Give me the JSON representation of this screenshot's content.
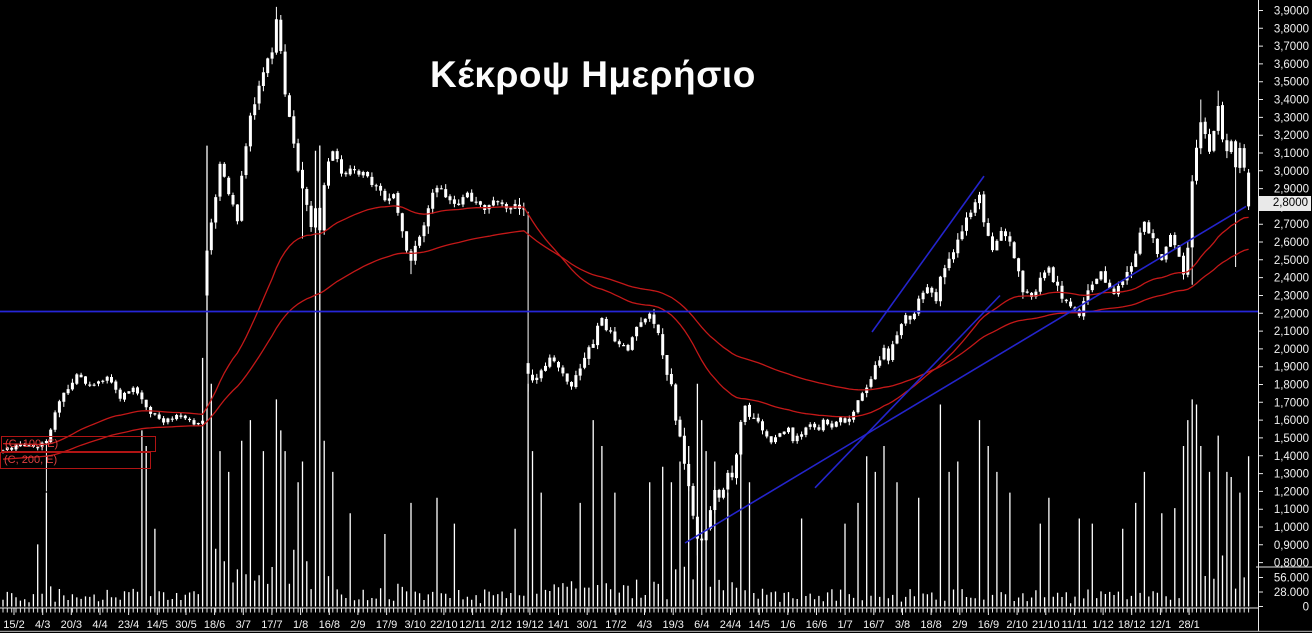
{
  "colors": {
    "background": "#000000",
    "candle": "#ffffff",
    "volume": "#ffffff",
    "ema": "#c41818",
    "trend": "#2424cc",
    "hline": "#2626d8",
    "axis_line": "#e8e8e8",
    "axis_text": "#f2f2f2",
    "bottom_border": "#9a9a9a",
    "last_price_bg": "#e9e9e9",
    "last_price_text": "#000000"
  },
  "indicators": {
    "ema_labels": [
      "(C, 100, E)",
      "(C, 200, E)"
    ],
    "ema_periods": [
      100,
      200
    ],
    "ema_seeds": [
      1.47,
      1.38
    ],
    "ema_alphas": [
      0.042,
      0.024
    ]
  },
  "chart_data": {
    "type": "candlestick",
    "title": "Κέκροψ Ημερήσιο",
    "ylabel": "",
    "xlabel": "",
    "ylim": [
      0.8,
      3.9
    ],
    "y_tick_step": 0.1,
    "grid": false,
    "last_price": 2.8,
    "last_price_label": "2,8000",
    "hline_price": 2.21,
    "y_axis_ticks": [
      "3,9000",
      "3,8000",
      "3,7000",
      "3,6000",
      "3,5000",
      "3,4000",
      "3,3000",
      "3,2000",
      "3,1000",
      "3,0000",
      "2,9000",
      "2,8000",
      "2,7000",
      "2,6000",
      "2,5000",
      "2,4000",
      "2,3000",
      "2,2000",
      "2,1000",
      "2,0000",
      "1,9000",
      "1,8000",
      "1,7000",
      "1,6000",
      "1,5000",
      "1,4000",
      "1,3000",
      "1,2000",
      "1,1000",
      "1,0000",
      "0,9000",
      "0,8000"
    ],
    "volume_ticks": [
      {
        "label": "56.000",
        "value": 56000
      },
      {
        "label": "28.000",
        "value": 28000
      },
      {
        "label": "0",
        "value": 0
      }
    ],
    "x_labels": [
      "15/2",
      "4/3",
      "20/3",
      "4/4",
      "23/4",
      "14/5",
      "30/5",
      "18/6",
      "3/7",
      "17/7",
      "1/8",
      "16/8",
      "2/9",
      "17/9",
      "3/10",
      "22/10",
      "12/11",
      "2/12",
      "19/12",
      "14/1",
      "30/1",
      "17/2",
      "4/3",
      "19/3",
      "6/4",
      "24/4",
      "14/5",
      "1/6",
      "16/6",
      "1/7",
      "16/7",
      "3/8",
      "18/8",
      "2/9",
      "16/9",
      "2/10",
      "21/10",
      "11/11",
      "1/12",
      "18/12",
      "12/1",
      "28/1"
    ],
    "n_candles": 288,
    "close_anchors": [
      [
        0,
        1.43
      ],
      [
        4,
        1.46
      ],
      [
        8,
        1.45
      ],
      [
        10,
        1.5
      ],
      [
        13,
        1.7
      ],
      [
        17,
        1.86
      ],
      [
        20,
        1.79
      ],
      [
        24,
        1.84
      ],
      [
        27,
        1.73
      ],
      [
        30,
        1.77
      ],
      [
        34,
        1.64
      ],
      [
        37,
        1.59
      ],
      [
        41,
        1.63
      ],
      [
        44,
        1.57
      ],
      [
        46,
        1.62
      ],
      [
        47,
        2.58
      ],
      [
        48,
        2.72
      ],
      [
        50,
        3.02
      ],
      [
        52,
        2.88
      ],
      [
        54,
        2.72
      ],
      [
        55,
        2.95
      ],
      [
        57,
        3.28
      ],
      [
        59,
        3.45
      ],
      [
        60,
        3.55
      ],
      [
        62,
        3.66
      ],
      [
        63,
        3.85
      ],
      [
        64,
        3.7
      ],
      [
        65,
        3.45
      ],
      [
        66,
        3.32
      ],
      [
        67,
        3.18
      ],
      [
        68,
        2.98
      ],
      [
        69,
        2.88
      ],
      [
        71,
        2.7
      ],
      [
        72,
        2.78
      ],
      [
        73,
        2.68
      ],
      [
        74,
        2.9
      ],
      [
        75,
        3.05
      ],
      [
        76,
        3.12
      ],
      [
        78,
        2.98
      ],
      [
        80,
        3.0
      ],
      [
        82,
        2.99
      ],
      [
        84,
        2.98
      ],
      [
        86,
        2.9
      ],
      [
        88,
        2.85
      ],
      [
        90,
        2.85
      ],
      [
        92,
        2.68
      ],
      [
        93,
        2.56
      ],
      [
        94,
        2.5
      ],
      [
        95,
        2.58
      ],
      [
        97,
        2.72
      ],
      [
        99,
        2.86
      ],
      [
        100,
        2.92
      ],
      [
        102,
        2.86
      ],
      [
        104,
        2.8
      ],
      [
        107,
        2.87
      ],
      [
        109,
        2.81
      ],
      [
        111,
        2.78
      ],
      [
        114,
        2.84
      ],
      [
        116,
        2.79
      ],
      [
        118,
        2.81
      ],
      [
        120,
        2.76
      ],
      [
        121,
        1.85
      ],
      [
        122,
        1.8
      ],
      [
        124,
        1.88
      ],
      [
        126,
        1.95
      ],
      [
        129,
        1.85
      ],
      [
        131,
        1.78
      ],
      [
        133,
        1.9
      ],
      [
        136,
        2.05
      ],
      [
        138,
        2.18
      ],
      [
        139,
        2.12
      ],
      [
        141,
        2.05
      ],
      [
        144,
        2.0
      ],
      [
        145,
        2.08
      ],
      [
        147,
        2.15
      ],
      [
        149,
        2.2
      ],
      [
        151,
        2.08
      ],
      [
        152,
        1.95
      ],
      [
        154,
        1.8
      ],
      [
        155,
        1.62
      ],
      [
        156,
        1.5
      ],
      [
        158,
        1.25
      ],
      [
        159,
        1.05
      ],
      [
        160,
        0.95
      ],
      [
        161,
        0.92
      ],
      [
        162,
        1.0
      ],
      [
        164,
        1.22
      ],
      [
        165,
        1.15
      ],
      [
        167,
        1.28
      ],
      [
        168,
        1.25
      ],
      [
        170,
        1.6
      ],
      [
        171,
        1.68
      ],
      [
        172,
        1.62
      ],
      [
        174,
        1.6
      ],
      [
        175,
        1.55
      ],
      [
        177,
        1.48
      ],
      [
        179,
        1.52
      ],
      [
        181,
        1.55
      ],
      [
        182,
        1.49
      ],
      [
        184,
        1.53
      ],
      [
        186,
        1.58
      ],
      [
        188,
        1.55
      ],
      [
        189,
        1.6
      ],
      [
        191,
        1.55
      ],
      [
        193,
        1.62
      ],
      [
        194,
        1.58
      ],
      [
        196,
        1.64
      ],
      [
        197,
        1.7
      ],
      [
        199,
        1.78
      ],
      [
        201,
        1.9
      ],
      [
        203,
        2.0
      ],
      [
        204,
        1.95
      ],
      [
        206,
        2.1
      ],
      [
        208,
        2.2
      ],
      [
        209,
        2.15
      ],
      [
        211,
        2.28
      ],
      [
        213,
        2.35
      ],
      [
        215,
        2.28
      ],
      [
        216,
        2.4
      ],
      [
        218,
        2.52
      ],
      [
        220,
        2.6
      ],
      [
        221,
        2.68
      ],
      [
        223,
        2.78
      ],
      [
        225,
        2.85
      ],
      [
        227,
        2.62
      ],
      [
        228,
        2.56
      ],
      [
        230,
        2.65
      ],
      [
        232,
        2.58
      ],
      [
        234,
        2.45
      ],
      [
        235,
        2.32
      ],
      [
        237,
        2.28
      ],
      [
        239,
        2.38
      ],
      [
        241,
        2.45
      ],
      [
        242,
        2.38
      ],
      [
        244,
        2.3
      ],
      [
        246,
        2.25
      ],
      [
        248,
        2.18
      ],
      [
        249,
        2.28
      ],
      [
        251,
        2.36
      ],
      [
        253,
        2.42
      ],
      [
        254,
        2.36
      ],
      [
        256,
        2.3
      ],
      [
        258,
        2.38
      ],
      [
        260,
        2.45
      ],
      [
        261,
        2.55
      ],
      [
        263,
        2.72
      ],
      [
        264,
        2.65
      ],
      [
        265,
        2.6
      ],
      [
        267,
        2.5
      ],
      [
        268,
        2.58
      ],
      [
        269,
        2.64
      ],
      [
        270,
        2.6
      ],
      [
        271,
        2.52
      ],
      [
        272,
        2.4
      ],
      [
        273,
        2.58
      ],
      [
        274,
        2.92
      ],
      [
        275,
        3.1
      ],
      [
        276,
        3.28
      ],
      [
        277,
        3.2
      ],
      [
        278,
        3.12
      ],
      [
        279,
        3.24
      ],
      [
        280,
        3.36
      ],
      [
        281,
        3.18
      ],
      [
        282,
        3.1
      ],
      [
        283,
        3.16
      ],
      [
        284,
        3.04
      ],
      [
        285,
        3.1
      ],
      [
        286,
        2.99
      ],
      [
        287,
        2.8
      ]
    ],
    "wick_events": [
      {
        "i": 10,
        "low": 1.2
      },
      {
        "i": 47,
        "open": 2.3,
        "low": 1.65
      },
      {
        "i": 63,
        "high": 3.92
      },
      {
        "i": 69,
        "high": 3.05,
        "low": 2.62
      },
      {
        "i": 94,
        "low": 2.42
      },
      {
        "i": 121,
        "open": 1.92,
        "high": 2.77,
        "low": 1.76
      },
      {
        "i": 160,
        "low": 0.84
      },
      {
        "i": 274,
        "low": 2.36
      },
      {
        "i": 276,
        "high": 3.4
      },
      {
        "i": 280,
        "high": 3.45
      },
      {
        "i": 284,
        "low": 2.46
      },
      {
        "i": 287,
        "open": 2.99,
        "high": 3.01,
        "low": 2.78
      }
    ],
    "volume_spikes_thousands": [
      [
        8,
        120
      ],
      [
        10,
        220
      ],
      [
        32,
        340
      ],
      [
        33,
        310
      ],
      [
        35,
        150
      ],
      [
        46,
        480
      ],
      [
        47,
        890
      ],
      [
        48,
        430
      ],
      [
        50,
        300
      ],
      [
        52,
        260
      ],
      [
        55,
        320
      ],
      [
        57,
        360
      ],
      [
        60,
        300
      ],
      [
        63,
        400
      ],
      [
        64,
        340
      ],
      [
        65,
        300
      ],
      [
        68,
        240
      ],
      [
        69,
        280
      ],
      [
        72,
        880
      ],
      [
        73,
        900
      ],
      [
        74,
        320
      ],
      [
        76,
        260
      ],
      [
        80,
        180
      ],
      [
        88,
        140
      ],
      [
        94,
        200
      ],
      [
        100,
        210
      ],
      [
        104,
        160
      ],
      [
        118,
        150
      ],
      [
        121,
        430
      ],
      [
        122,
        300
      ],
      [
        124,
        220
      ],
      [
        133,
        200
      ],
      [
        136,
        360
      ],
      [
        138,
        310
      ],
      [
        141,
        220
      ],
      [
        149,
        240
      ],
      [
        152,
        270
      ],
      [
        154,
        240
      ],
      [
        156,
        280
      ],
      [
        158,
        310
      ],
      [
        160,
        430
      ],
      [
        161,
        360
      ],
      [
        162,
        300
      ],
      [
        164,
        280
      ],
      [
        167,
        220
      ],
      [
        170,
        310
      ],
      [
        172,
        240
      ],
      [
        184,
        170
      ],
      [
        194,
        160
      ],
      [
        197,
        200
      ],
      [
        199,
        290
      ],
      [
        201,
        260
      ],
      [
        203,
        310
      ],
      [
        206,
        240
      ],
      [
        211,
        210
      ],
      [
        216,
        390
      ],
      [
        218,
        260
      ],
      [
        220,
        280
      ],
      [
        225,
        360
      ],
      [
        227,
        310
      ],
      [
        229,
        260
      ],
      [
        232,
        220
      ],
      [
        239,
        160
      ],
      [
        241,
        210
      ],
      [
        248,
        170
      ],
      [
        251,
        160
      ],
      [
        258,
        150
      ],
      [
        261,
        200
      ],
      [
        263,
        260
      ],
      [
        267,
        180
      ],
      [
        270,
        190
      ],
      [
        272,
        310
      ],
      [
        273,
        360
      ],
      [
        274,
        400
      ],
      [
        275,
        390
      ],
      [
        276,
        310
      ],
      [
        278,
        260
      ],
      [
        280,
        330
      ],
      [
        282,
        260
      ],
      [
        283,
        250
      ],
      [
        285,
        220
      ],
      [
        287,
        290
      ]
    ],
    "trendlines_price_space": [
      {
        "x1": 685,
        "p1": 0.91,
        "x2": 1246,
        "p2": 2.8
      },
      {
        "x1": 815,
        "p1": 1.22,
        "x2": 1000,
        "p2": 2.3
      },
      {
        "x1": 872,
        "p1": 2.095,
        "x2": 984,
        "p2": 2.97
      }
    ]
  }
}
